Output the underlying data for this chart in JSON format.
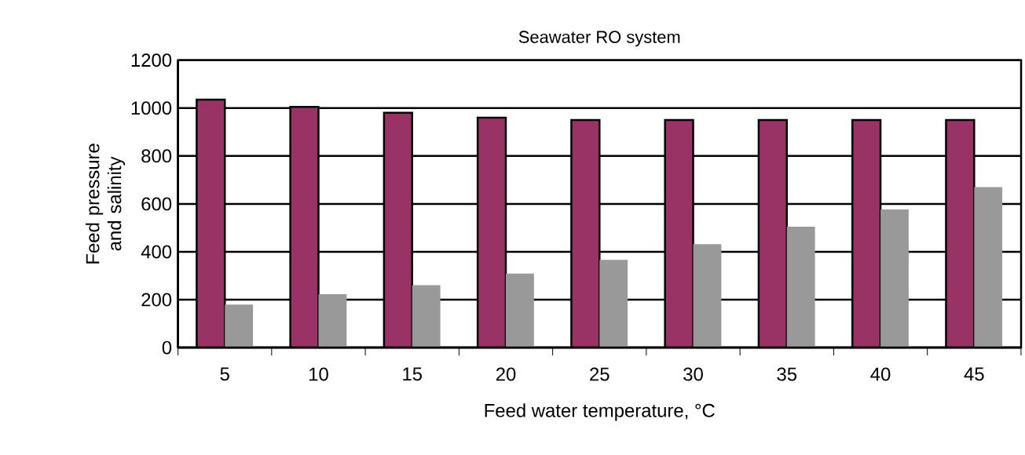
{
  "chart_data": {
    "type": "bar",
    "title": "Seawater RO system",
    "xlabel": "Feed water temperature, °C",
    "ylabel": "Feed pressure and salinity",
    "categories": [
      "5",
      "10",
      "15",
      "20",
      "25",
      "30",
      "35",
      "40",
      "45"
    ],
    "series": [
      {
        "color": "#993366",
        "values": [
          1035,
          1005,
          980,
          960,
          950,
          950,
          950,
          950,
          950
        ]
      },
      {
        "color": "#999999",
        "values": [
          180,
          223,
          261,
          309,
          366,
          432,
          505,
          577,
          670
        ]
      }
    ],
    "ylim": [
      0,
      1200
    ],
    "yticks": [
      0,
      200,
      400,
      600,
      800,
      1000,
      1200
    ],
    "grid": "y"
  }
}
